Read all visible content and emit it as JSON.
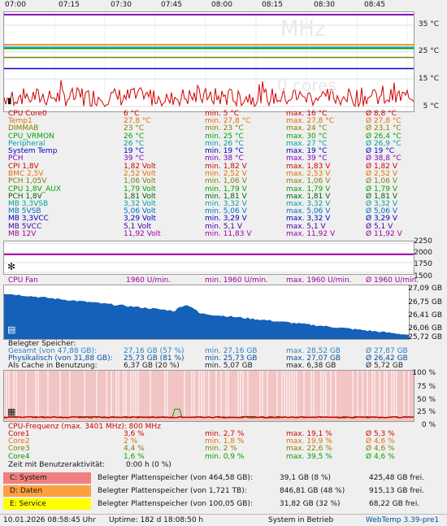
{
  "time_axis": [
    "07:00",
    "07:15",
    "07:30",
    "07:45",
    "08:00",
    "08:15",
    "08:30",
    "08:45"
  ],
  "temp_graph": {
    "scale": [
      "35 °C",
      "25 °C",
      "15 °C",
      "5 °C"
    ],
    "watermark": [
      "MHz",
      "0 cores"
    ]
  },
  "temps": [
    {
      "name": "CPU Core0",
      "cur": "6 °C",
      "min": "min.  5 °C",
      "max": "max.  16 °C",
      "avg": "Ø 8,8 °C",
      "color": "#d00000"
    },
    {
      "name": "Temp1",
      "cur": "27,8 °C",
      "min": "min.  27,8 °C",
      "max": "max.  27,8 °C",
      "avg": "Ø 27,8 °C",
      "color": "#e07000"
    },
    {
      "name": "DIMMAB",
      "cur": "23 °C",
      "min": "min.  23 °C",
      "max": "max.  24 °C",
      "avg": "Ø 23,1 °C",
      "color": "#808000"
    },
    {
      "name": "CPU_VRMON",
      "cur": "26 °C",
      "min": "min.  25 °C",
      "max": "max.  30 °C",
      "avg": "Ø 26,4 °C",
      "color": "#00a000"
    },
    {
      "name": "Peripheral",
      "cur": "26 °C",
      "min": "min.  26 °C",
      "max": "max.  27 °C",
      "avg": "Ø 26,9 °C",
      "color": "#00a0a0"
    },
    {
      "name": "System Temp",
      "cur": "19 °C",
      "min": "min.  19 °C",
      "max": "max.  19 °C",
      "avg": "Ø 19 °C",
      "color": "#0000c0"
    },
    {
      "name": "PCH",
      "cur": "39 °C",
      "min": "min.  38 °C",
      "max": "max.  39 °C",
      "avg": "Ø 38,8 °C",
      "color": "#8000c0"
    }
  ],
  "volts": [
    {
      "name": "CPI 1,8V",
      "cur": "1,82 Volt",
      "min": "min.  1,82 V",
      "max": "max.  1,83 V",
      "avg": "Ø 1,82 V",
      "color": "#d00000"
    },
    {
      "name": "BMC 2,5V",
      "cur": "2,52 Volt",
      "min": "min.  2,52 V",
      "max": "max.  2,53 V",
      "avg": "Ø 2,52 V",
      "color": "#e07000"
    },
    {
      "name": "PCH 1,05V",
      "cur": "1,06 Volt",
      "min": "min.  1,06 V",
      "max": "max.  1,06 V",
      "avg": "Ø 1,06 V",
      "color": "#808000"
    },
    {
      "name": "CPU 1,8V_AUX",
      "cur": "1,79 Volt",
      "min": "min.  1,79 V",
      "max": "max.  1,79 V",
      "avg": "Ø 1,79 V",
      "color": "#00a000"
    },
    {
      "name": "PCH 1,8V",
      "cur": "1,81 Volt",
      "min": "min.  1,81 V",
      "max": "max.  1,81 V",
      "avg": "Ø 1,81 V",
      "color": "#006000"
    },
    {
      "name": "MB 3,3VSB",
      "cur": "3,32 Volt",
      "min": "min.  3,32 V",
      "max": "max.  3,32 V",
      "avg": "Ø 3,32 V",
      "color": "#00a0a0"
    },
    {
      "name": "MB 5VSB",
      "cur": "5,06 Volt",
      "min": "min.  5,06 V",
      "max": "max.  5,06 V",
      "avg": "Ø 5,06 V",
      "color": "#0070c0"
    },
    {
      "name": "MB 3,3VCC",
      "cur": "3,29 Volt",
      "min": "min.  3,29 V",
      "max": "max.  3,32 V",
      "avg": "Ø 3,29 V",
      "color": "#0000c0"
    },
    {
      "name": "MB 5VCC",
      "cur": "5,1 Volt",
      "min": "min.  5,1 V",
      "max": "max.  5,1 V",
      "avg": "Ø 5,1 V",
      "color": "#4000a0"
    },
    {
      "name": "MB 12V",
      "cur": "11,92 Volt",
      "min": "min.  11,83 V",
      "max": "max.  11,92 V",
      "avg": "Ø 11,92 V",
      "color": "#a000a0"
    }
  ],
  "fan_graph": {
    "scale": [
      "2250",
      "2000",
      "1750",
      "1500"
    ]
  },
  "fan": {
    "name": "CPU Fan",
    "cur": "1960 U/min.",
    "min": "min.  1960 U/min.",
    "max": "max.  1960 U/min.",
    "avg": "Ø 1960 U/min.",
    "color": "#a000a0"
  },
  "mem_graph": {
    "scale": [
      "27,09 GB",
      "26,75 GB",
      "26,41 GB",
      "26,06 GB",
      "25,72 GB"
    ]
  },
  "mem": {
    "title": "Belegter Speicher:",
    "rows": [
      {
        "name": "Gesamt (von 47,88 GB):",
        "cur": "27,16 GB (57 %)",
        "min": "min.  27,16 GB",
        "max": "max.  28,52 GB",
        "avg": "Ø 27,87 GB",
        "color": "#3080c0"
      },
      {
        "name": "Physikalisch (von 31,88 GB):",
        "cur": "25,73 GB (81 %)",
        "min": "min.  25,73 GB",
        "max": "max.  27,07 GB",
        "avg": "Ø 26,42 GB",
        "color": "#0050a0"
      },
      {
        "name": "Als Cache in Benutzung:",
        "cur": "6,37 GB (20 %)",
        "min": "min.  5,07 GB",
        "max": "max.  6,38 GB",
        "avg": "Ø 5,72 GB",
        "color": "#202020"
      }
    ]
  },
  "cpu_graph": {
    "scale": [
      "100 %",
      "75 %",
      "50 %",
      "25 %",
      "0 %"
    ]
  },
  "cpu": {
    "title": "CPU-Frequenz (max. 3401 MHz): 800 MHz",
    "rows": [
      {
        "name": "Core1",
        "cur": "3,6 %",
        "min": "min.  2,7 %",
        "max": "max.  19,1 %",
        "avg": "Ø 5,3 %",
        "color": "#d00000"
      },
      {
        "name": "Core2",
        "cur": "2 %",
        "min": "min.  1,8 %",
        "max": "max.  19,9 %",
        "avg": "Ø 4,6 %",
        "color": "#e07000"
      },
      {
        "name": "Core3",
        "cur": "4,4 %",
        "min": "min.  2 %",
        "max": "max.  22,6 %",
        "avg": "Ø 4,6 %",
        "color": "#808000"
      },
      {
        "name": "Core4",
        "cur": "1,6 %",
        "min": "min.  0,9 %",
        "max": "max.  39,5 %",
        "avg": "Ø 4,6 %",
        "color": "#00a000"
      }
    ],
    "idle_label": "Zeit mit Benutzeraktivität:",
    "idle_value": "0:00 h (0 %)"
  },
  "drives": [
    {
      "name": "C: System",
      "label": "Belegter Plattenspeicher (von 464,58 GB):",
      "used": "39,1 GB (8 %)",
      "free": "425,48 GB frei.",
      "color": "#f08080",
      "fill": 0.08
    },
    {
      "name": "D: Daten",
      "label": "Belegter Plattenspeicher (von 1,721 TB):",
      "used": "846,81 GB (48 %)",
      "free": "915,13 GB frei.",
      "color": "#ffa040",
      "fill": 0.48
    },
    {
      "name": "E: Service",
      "label": "Belegter Plattenspeicher (von 100,05 GB):",
      "used": "31,82 GB (32 %)",
      "free": "68,22 GB frei.",
      "color": "#ffff00",
      "fill": 0.32
    }
  ],
  "status": {
    "datetime": "10.01.2026 08:58:45 Uhr",
    "uptime": "Uptime: 182 d 18:08:50 h",
    "state": "System in Betrieb",
    "version": "WebTemp 3.39-pre1"
  }
}
